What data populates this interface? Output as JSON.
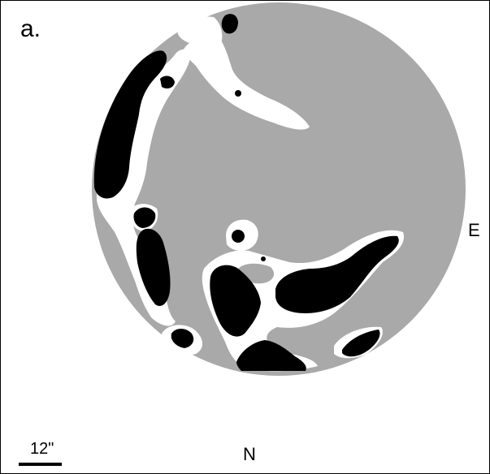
{
  "panel_label": "a.",
  "directions": {
    "east": "E",
    "north": "N"
  },
  "scale_bar": {
    "label": "12\""
  },
  "colors": {
    "background": "#ffffff",
    "disk": "#a9a9a9",
    "dark_regions": "#000000",
    "white_regions": "#ffffff"
  }
}
